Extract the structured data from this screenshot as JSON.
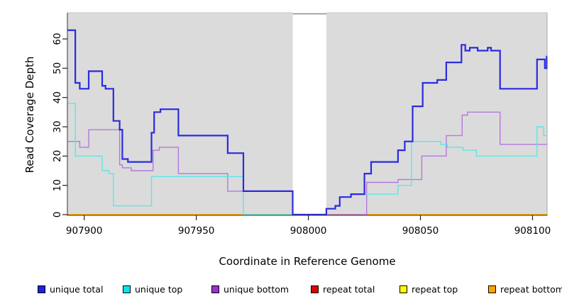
{
  "chart_data": {
    "type": "line",
    "step_style": "after",
    "title": "",
    "xlabel": "Coordinate in Reference Genome",
    "ylabel": "Read Coverage Depth",
    "xlim": [
      907892.5,
      908106.5
    ],
    "ylim": [
      0,
      69
    ],
    "x_ticks": [
      "907900",
      "907950",
      "908000",
      "908050",
      "908100"
    ],
    "x_tick_values": [
      907900,
      907950,
      908000,
      908050,
      908100
    ],
    "y_ticks": [
      "0",
      "10",
      "20",
      "30",
      "40",
      "50",
      "60"
    ],
    "y_tick_values": [
      0,
      10,
      20,
      30,
      40,
      50,
      60
    ],
    "grid": false,
    "panel_background": "#DBDBDB",
    "gap_region": {
      "x_start": 907993,
      "x_end": 908008,
      "color": "#FFFFFF"
    },
    "legend": {
      "position": "bottom",
      "items": [
        {
          "label": "unique total",
          "color": "#2222DD"
        },
        {
          "label": "unique top",
          "color": "#00E5EE"
        },
        {
          "label": "unique bottom",
          "color": "#9932CC"
        },
        {
          "label": "repeat total",
          "color": "#DD0000"
        },
        {
          "label": "repeat top",
          "color": "#FFFF00"
        },
        {
          "label": "repeat bottom",
          "color": "#FFA500"
        }
      ],
      "item_x": [
        53,
        173,
        298,
        438,
        563,
        688
      ]
    },
    "series": [
      {
        "name": "repeat total",
        "color": "#DD0000",
        "line_width": 1.2,
        "points": [
          [
            907892.5,
            0
          ]
        ]
      },
      {
        "name": "repeat top",
        "color": "#FFFF00",
        "line_width": 1.2,
        "points": [
          [
            907892.5,
            0
          ]
        ]
      },
      {
        "name": "repeat bottom",
        "color": "#FFA500",
        "line_width": 1.7,
        "points": [
          [
            907892.5,
            0
          ]
        ]
      },
      {
        "name": "unique bottom",
        "color": "#B478DC",
        "line_width": 1.4,
        "points": [
          [
            907892.5,
            25
          ],
          [
            907898,
            23
          ],
          [
            907902,
            29
          ],
          [
            907915.8,
            17
          ],
          [
            907917,
            16
          ],
          [
            907921,
            15
          ],
          [
            907930.7,
            22
          ],
          [
            907933.5,
            23
          ],
          [
            907942,
            14
          ],
          [
            907964,
            8
          ],
          [
            907993,
            0
          ],
          [
            908026,
            11
          ],
          [
            908040,
            12
          ],
          [
            908050.6,
            20
          ],
          [
            908061.5,
            27
          ],
          [
            908068.6,
            34
          ],
          [
            908071,
            35
          ],
          [
            908085.5,
            24
          ]
        ]
      },
      {
        "name": "unique top",
        "color": "#5CE6E6",
        "line_width": 1.4,
        "points": [
          [
            907892.5,
            38
          ],
          [
            907896,
            20
          ],
          [
            907908,
            15
          ],
          [
            907911,
            14
          ],
          [
            907913,
            3
          ],
          [
            907930,
            13
          ],
          [
            907971,
            0
          ],
          [
            908008,
            2
          ],
          [
            908012,
            3
          ],
          [
            908014,
            6
          ],
          [
            908019,
            7
          ],
          [
            908040,
            10
          ],
          [
            908046,
            25
          ],
          [
            908059,
            24
          ],
          [
            908062,
            23
          ],
          [
            908069,
            22
          ],
          [
            908075,
            20
          ],
          [
            908102,
            30
          ],
          [
            908105,
            27
          ]
        ]
      },
      {
        "name": "unique total",
        "color": "#2B2BDF",
        "line_width": 2.2,
        "points": [
          [
            907892.5,
            63
          ],
          [
            907896,
            45
          ],
          [
            907898,
            43
          ],
          [
            907902,
            49
          ],
          [
            907908,
            44
          ],
          [
            907909.5,
            43
          ],
          [
            907913,
            32
          ],
          [
            907915.8,
            29
          ],
          [
            907917,
            19
          ],
          [
            907919.5,
            18
          ],
          [
            907930,
            28
          ],
          [
            907931.2,
            35
          ],
          [
            907934,
            36
          ],
          [
            907942,
            27
          ],
          [
            907964,
            21
          ],
          [
            907971,
            8
          ],
          [
            907993,
            0
          ],
          [
            908008,
            2
          ],
          [
            908012,
            3
          ],
          [
            908014,
            6
          ],
          [
            908019,
            7
          ],
          [
            908025,
            14
          ],
          [
            908028,
            18
          ],
          [
            908040,
            22
          ],
          [
            908043,
            25
          ],
          [
            908046.5,
            37
          ],
          [
            908051,
            45
          ],
          [
            908057.5,
            46
          ],
          [
            908061.5,
            52
          ],
          [
            908068.3,
            58
          ],
          [
            908070,
            56
          ],
          [
            908072,
            57
          ],
          [
            908075.5,
            56
          ],
          [
            908080,
            57
          ],
          [
            908081.5,
            56
          ],
          [
            908085.5,
            43
          ],
          [
            908102,
            53
          ],
          [
            908105.5,
            50
          ],
          [
            908106.3,
            54
          ]
        ]
      }
    ]
  }
}
